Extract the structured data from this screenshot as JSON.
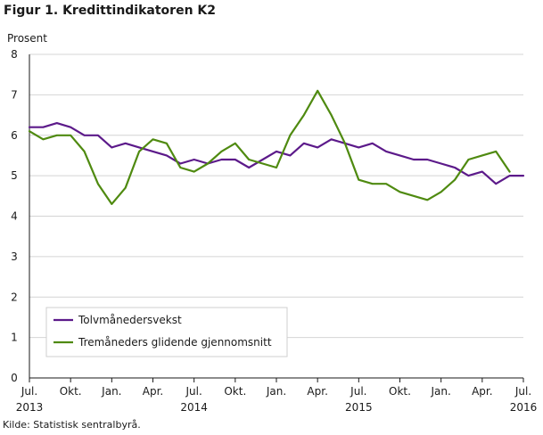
{
  "title": "Figur 1. Kredittindikatoren K2",
  "source": "Kilde: Statistisk sentralbyrå.",
  "chart_data": {
    "type": "line",
    "ylabel": "Prosent",
    "ylim": [
      0,
      8
    ],
    "yticks": [
      0,
      1,
      2,
      3,
      4,
      5,
      6,
      7,
      8
    ],
    "grid": true,
    "legend_position": "bottom-left",
    "x": [
      "2013-07",
      "2013-08",
      "2013-09",
      "2013-10",
      "2013-11",
      "2013-12",
      "2014-01",
      "2014-02",
      "2014-03",
      "2014-04",
      "2014-05",
      "2014-06",
      "2014-07",
      "2014-08",
      "2014-09",
      "2014-10",
      "2014-11",
      "2014-12",
      "2015-01",
      "2015-02",
      "2015-03",
      "2015-04",
      "2015-05",
      "2015-06",
      "2015-07",
      "2015-08",
      "2015-09",
      "2015-10",
      "2015-11",
      "2015-12",
      "2016-01",
      "2016-02",
      "2016-03",
      "2016-04",
      "2016-05",
      "2016-06",
      "2016-07"
    ],
    "xtick_labels": [
      {
        "label": "Jul.",
        "sub": "2013"
      },
      {
        "label": "Okt.",
        "sub": ""
      },
      {
        "label": "Jan.",
        "sub": ""
      },
      {
        "label": "Apr.",
        "sub": ""
      },
      {
        "label": "Jul.",
        "sub": "2014"
      },
      {
        "label": "Okt.",
        "sub": ""
      },
      {
        "label": "Jan.",
        "sub": ""
      },
      {
        "label": "Apr.",
        "sub": ""
      },
      {
        "label": "Jul.",
        "sub": "2015"
      },
      {
        "label": "Okt.",
        "sub": ""
      },
      {
        "label": "Jan.",
        "sub": ""
      },
      {
        "label": "Apr.",
        "sub": ""
      },
      {
        "label": "Jul.",
        "sub": "2016"
      }
    ],
    "series": [
      {
        "name": "Tolvmånedersvekst",
        "color": "#5c1a8a",
        "values": [
          6.2,
          6.2,
          6.3,
          6.2,
          6.0,
          6.0,
          5.7,
          5.8,
          5.7,
          5.6,
          5.5,
          5.3,
          5.4,
          5.3,
          5.4,
          5.4,
          5.2,
          5.4,
          5.6,
          5.5,
          5.8,
          5.7,
          5.9,
          5.8,
          5.7,
          5.8,
          5.6,
          5.5,
          5.4,
          5.4,
          5.3,
          5.2,
          5.0,
          5.1,
          4.8,
          5.0,
          5.0
        ]
      },
      {
        "name": "Tremåneders glidende gjennomsnitt",
        "color": "#4f8a10",
        "values": [
          6.1,
          5.9,
          6.0,
          6.0,
          5.6,
          4.8,
          4.3,
          4.7,
          5.6,
          5.9,
          5.8,
          5.2,
          5.1,
          5.3,
          5.6,
          5.8,
          5.4,
          5.3,
          5.2,
          6.0,
          6.5,
          7.1,
          6.5,
          5.8,
          4.9,
          4.8,
          4.8,
          4.6,
          4.5,
          4.4,
          4.6,
          4.9,
          5.4,
          5.5,
          5.6,
          5.1,
          null
        ]
      }
    ]
  }
}
